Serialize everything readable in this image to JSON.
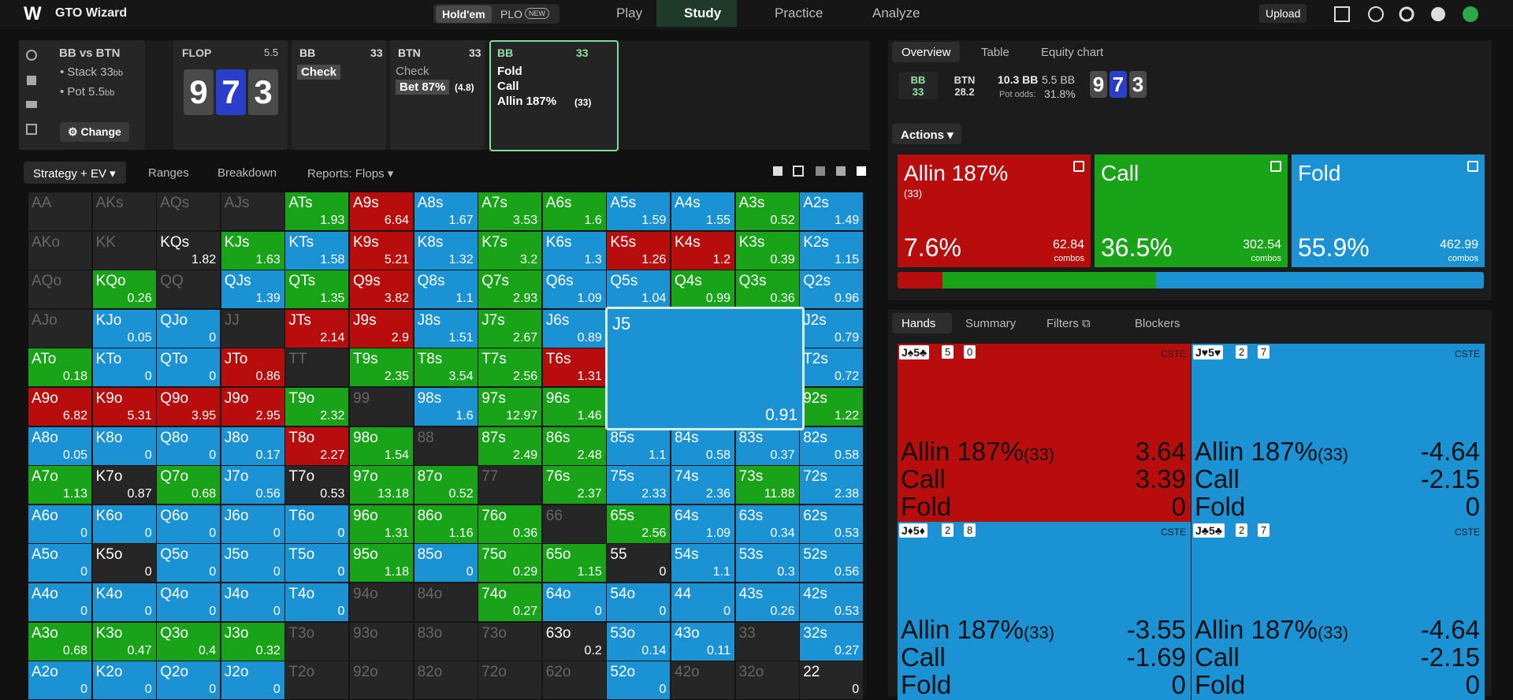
{
  "topbar": {
    "brand": "GTO Wizard",
    "game_tabs": [
      "Hold'em",
      "PLO"
    ],
    "new_badge": "NEW",
    "nav": [
      "Play",
      "Study",
      "Practice",
      "Analyze"
    ],
    "upload": "Upload"
  },
  "spot": {
    "title": "BB vs BTN",
    "stack": "Stack 33",
    "stack_unit": "bb",
    "pot": "Pot 5.5",
    "pot_unit": "bb",
    "change": "Change"
  },
  "flop": {
    "label": "FLOP",
    "pot": "5.5",
    "cards": [
      {
        "rank": "9",
        "color": "#4a4a4a"
      },
      {
        "rank": "7",
        "color": "#2a3fc9"
      },
      {
        "rank": "3",
        "color": "#4a4a4a"
      }
    ]
  },
  "nodes": [
    {
      "player": "BB",
      "stack": "33",
      "actions": [
        "Check"
      ]
    },
    {
      "player": "BTN",
      "stack": "33",
      "actions": [
        "Check",
        "Bet 87%"
      ],
      "note": "(4.8)"
    },
    {
      "player": "BB",
      "stack": "33",
      "actions": [
        "Fold",
        "Call",
        "Allin 187%"
      ],
      "note": "(33)"
    }
  ],
  "subtabs": [
    "Strategy + EV",
    "Ranges",
    "Breakdown",
    "Reports: Flops"
  ],
  "grid": {
    "rows": [
      [
        [
          "AA",
          null,
          "#262626"
        ],
        [
          "AKs",
          null,
          "#262626"
        ],
        [
          "AQs",
          null,
          "#262626"
        ],
        [
          "AJs",
          null,
          "#262626"
        ],
        [
          "ATs",
          1.93,
          "#19a319"
        ],
        [
          "A9s",
          6.64,
          "#b70d0d"
        ],
        [
          "A8s",
          1.67,
          "#1a92d3"
        ],
        [
          "A7s",
          3.53,
          "#19a319"
        ],
        [
          "A6s",
          1.6,
          "#19a319"
        ],
        [
          "A5s",
          1.59,
          "#1a92d3"
        ],
        [
          "A4s",
          1.55,
          "#1a92d3"
        ],
        [
          "A3s",
          0.52,
          "#19a319"
        ],
        [
          "A2s",
          1.49,
          "#1a92d3"
        ]
      ],
      [
        [
          "AKo",
          null,
          "#262626"
        ],
        [
          "KK",
          null,
          "#262626"
        ],
        [
          "KQs",
          1.82,
          "#262626"
        ],
        [
          "KJs",
          1.63,
          "#19a319"
        ],
        [
          "KTs",
          1.58,
          "#1a92d3"
        ],
        [
          "K9s",
          5.21,
          "#b70d0d"
        ],
        [
          "K8s",
          1.32,
          "#1a92d3"
        ],
        [
          "K7s",
          3.2,
          "#19a319"
        ],
        [
          "K6s",
          1.3,
          "#1a92d3"
        ],
        [
          "K5s",
          1.26,
          "#b70d0d"
        ],
        [
          "K4s",
          1.2,
          "#b70d0d"
        ],
        [
          "K3s",
          0.39,
          "#19a319"
        ],
        [
          "K2s",
          1.15,
          "#1a92d3"
        ]
      ],
      [
        [
          "AQo",
          null,
          "#262626"
        ],
        [
          "KQo",
          0.26,
          "#19a319"
        ],
        [
          "QQ",
          null,
          "#262626"
        ],
        [
          "QJs",
          1.39,
          "#1a92d3"
        ],
        [
          "QTs",
          1.35,
          "#19a319"
        ],
        [
          "Q9s",
          3.82,
          "#b70d0d"
        ],
        [
          "Q8s",
          1.1,
          "#1a92d3"
        ],
        [
          "Q7s",
          2.93,
          "#19a319"
        ],
        [
          "Q6s",
          1.09,
          "#1a92d3"
        ],
        [
          "Q5s",
          1.04,
          "#1a92d3"
        ],
        [
          "Q4s",
          0.99,
          "#19a319"
        ],
        [
          "Q3s",
          0.36,
          "#19a319"
        ],
        [
          "Q2s",
          0.96,
          "#1a92d3"
        ]
      ],
      [
        [
          "AJo",
          null,
          "#262626"
        ],
        [
          "KJo",
          0.05,
          "#1a92d3"
        ],
        [
          "QJo",
          0,
          "#1a92d3"
        ],
        [
          "JJ",
          null,
          "#262626"
        ],
        [
          "JTs",
          2.14,
          "#b70d0d"
        ],
        [
          "J9s",
          2.9,
          "#b70d0d"
        ],
        [
          "J8s",
          1.51,
          "#1a92d3"
        ],
        [
          "J7s",
          2.67,
          "#19a319"
        ],
        [
          "J6s",
          0.89,
          "#1a92d3"
        ],
        [
          null,
          null,
          "#262626"
        ],
        [
          null,
          null,
          "#262626"
        ],
        [
          null,
          null,
          "#262626"
        ],
        [
          "J2s",
          0.79,
          "#1a92d3"
        ]
      ],
      [
        [
          "ATo",
          0.18,
          "#19a319"
        ],
        [
          "KTo",
          0,
          "#1a92d3"
        ],
        [
          "QTo",
          0,
          "#1a92d3"
        ],
        [
          "JTo",
          0.86,
          "#b70d0d"
        ],
        [
          "TT",
          null,
          "#262626"
        ],
        [
          "T9s",
          2.35,
          "#19a319"
        ],
        [
          "T8s",
          3.54,
          "#19a319"
        ],
        [
          "T7s",
          2.56,
          "#19a319"
        ],
        [
          "T6s",
          1.31,
          "#b70d0d"
        ],
        [
          null,
          null,
          "#262626"
        ],
        [
          null,
          null,
          "#262626"
        ],
        [
          null,
          null,
          "#262626"
        ],
        [
          "T2s",
          0.72,
          "#1a92d3"
        ]
      ],
      [
        [
          "A9o",
          6.82,
          "#b70d0d"
        ],
        [
          "K9o",
          5.31,
          "#b70d0d"
        ],
        [
          "Q9o",
          3.95,
          "#b70d0d"
        ],
        [
          "J9o",
          2.95,
          "#b70d0d"
        ],
        [
          "T9o",
          2.32,
          "#19a319"
        ],
        [
          "99",
          null,
          "#262626"
        ],
        [
          "98s",
          1.6,
          "#1a92d3"
        ],
        [
          "97s",
          12.97,
          "#19a319"
        ],
        [
          "96s",
          1.46,
          "#19a319"
        ],
        [
          null,
          null,
          "#262626"
        ],
        [
          null,
          null,
          "#262626"
        ],
        [
          null,
          null,
          "#262626"
        ],
        [
          "92s",
          1.22,
          "#19a319"
        ]
      ],
      [
        [
          "A8o",
          0.05,
          "#1a92d3"
        ],
        [
          "K8o",
          0,
          "#1a92d3"
        ],
        [
          "Q8o",
          0,
          "#1a92d3"
        ],
        [
          "J8o",
          0.17,
          "#1a92d3"
        ],
        [
          "T8o",
          2.27,
          "#b70d0d"
        ],
        [
          "98o",
          1.54,
          "#19a319"
        ],
        [
          "88",
          null,
          "#262626"
        ],
        [
          "87s",
          2.49,
          "#19a319"
        ],
        [
          "86s",
          2.48,
          "#19a319"
        ],
        [
          "85s",
          1.1,
          "#1a92d3"
        ],
        [
          "84s",
          0.58,
          "#1a92d3"
        ],
        [
          "83s",
          0.37,
          "#1a92d3"
        ],
        [
          "82s",
          0.58,
          "#1a92d3"
        ]
      ],
      [
        [
          "A7o",
          1.13,
          "#19a319"
        ],
        [
          "K7o",
          0.87,
          "#262626"
        ],
        [
          "Q7o",
          0.68,
          "#19a319"
        ],
        [
          "J7o",
          0.56,
          "#1a92d3"
        ],
        [
          "T7o",
          0.53,
          "#262626"
        ],
        [
          "97o",
          13.18,
          "#19a319"
        ],
        [
          "87o",
          0.52,
          "#19a319"
        ],
        [
          "77",
          null,
          "#262626"
        ],
        [
          "76s",
          2.37,
          "#19a319"
        ],
        [
          "75s",
          2.33,
          "#1a92d3"
        ],
        [
          "74s",
          2.36,
          "#1a92d3"
        ],
        [
          "73s",
          11.88,
          "#19a319"
        ],
        [
          "72s",
          2.38,
          "#1a92d3"
        ]
      ],
      [
        [
          "A6o",
          0,
          "#1a92d3"
        ],
        [
          "K6o",
          0,
          "#1a92d3"
        ],
        [
          "Q6o",
          0,
          "#1a92d3"
        ],
        [
          "J6o",
          0,
          "#1a92d3"
        ],
        [
          "T6o",
          0,
          "#1a92d3"
        ],
        [
          "96o",
          1.31,
          "#19a319"
        ],
        [
          "86o",
          1.16,
          "#19a319"
        ],
        [
          "76o",
          0.36,
          "#19a319"
        ],
        [
          "66",
          null,
          "#262626"
        ],
        [
          "65s",
          2.56,
          "#19a319"
        ],
        [
          "64s",
          1.09,
          "#1a92d3"
        ],
        [
          "63s",
          0.34,
          "#1a92d3"
        ],
        [
          "62s",
          0.53,
          "#1a92d3"
        ]
      ],
      [
        [
          "A5o",
          0,
          "#1a92d3"
        ],
        [
          "K5o",
          0,
          "#262626"
        ],
        [
          "Q5o",
          0,
          "#1a92d3"
        ],
        [
          "J5o",
          0,
          "#1a92d3"
        ],
        [
          "T5o",
          0,
          "#1a92d3"
        ],
        [
          "95o",
          1.18,
          "#19a319"
        ],
        [
          "85o",
          0,
          "#1a92d3"
        ],
        [
          "75o",
          0.29,
          "#19a319"
        ],
        [
          "65o",
          1.15,
          "#19a319"
        ],
        [
          "55",
          0,
          "#262626"
        ],
        [
          "54s",
          1.1,
          "#1a92d3"
        ],
        [
          "53s",
          0.3,
          "#1a92d3"
        ],
        [
          "52s",
          0.56,
          "#1a92d3"
        ]
      ],
      [
        [
          "A4o",
          0,
          "#1a92d3"
        ],
        [
          "K4o",
          0,
          "#1a92d3"
        ],
        [
          "Q4o",
          0,
          "#1a92d3"
        ],
        [
          "J4o",
          0,
          "#1a92d3"
        ],
        [
          "T4o",
          0,
          "#1a92d3"
        ],
        [
          "94o",
          null,
          "#262626"
        ],
        [
          "84o",
          null,
          "#262626"
        ],
        [
          "74o",
          0.27,
          "#19a319"
        ],
        [
          "64o",
          0,
          "#1a92d3"
        ],
        [
          "54o",
          0,
          "#1a92d3"
        ],
        [
          "44",
          0,
          "#1a92d3"
        ],
        [
          "43s",
          0.26,
          "#1a92d3"
        ],
        [
          "42s",
          0.53,
          "#1a92d3"
        ]
      ],
      [
        [
          "A3o",
          0.68,
          "#19a319"
        ],
        [
          "K3o",
          0.47,
          "#19a319"
        ],
        [
          "Q3o",
          0.4,
          "#19a319"
        ],
        [
          "J3o",
          0.32,
          "#19a319"
        ],
        [
          "T3o",
          null,
          "#262626"
        ],
        [
          "93o",
          null,
          "#262626"
        ],
        [
          "83o",
          null,
          "#262626"
        ],
        [
          "73o",
          null,
          "#262626"
        ],
        [
          "63o",
          0.2,
          "#262626"
        ],
        [
          "53o",
          0.14,
          "#1a92d3"
        ],
        [
          "43o",
          0.11,
          "#1a92d3"
        ],
        [
          "33",
          null,
          "#262626"
        ],
        [
          "32s",
          0.27,
          "#1a92d3"
        ]
      ],
      [
        [
          "A2o",
          0,
          "#1a92d3"
        ],
        [
          "K2o",
          0,
          "#1a92d3"
        ],
        [
          "Q2o",
          0,
          "#1a92d3"
        ],
        [
          "J2o",
          0,
          "#1a92d3"
        ],
        [
          "T2o",
          null,
          "#262626"
        ],
        [
          "92o",
          null,
          "#262626"
        ],
        [
          "82o",
          null,
          "#262626"
        ],
        [
          "72o",
          null,
          "#262626"
        ],
        [
          "62o",
          null,
          "#262626"
        ],
        [
          "52o",
          0,
          "#1a92d3"
        ],
        [
          "42o",
          null,
          "#262626"
        ],
        [
          "32o",
          null,
          "#262626"
        ],
        [
          "22",
          0,
          "#262626"
        ]
      ]
    ],
    "popup": {
      "hand": "J5",
      "ev": 0.91,
      "color": "#1a92d3"
    }
  },
  "overview": {
    "tabs": [
      "Overview",
      "Table",
      "Equity chart"
    ],
    "bb": "BB",
    "bb_stack": "33",
    "btn": "BTN",
    "btn_stack": "28.2",
    "stack_bb": "10.3 BB",
    "pot_bb": "5.5 BB",
    "pot_odds_label": "Pot odds:",
    "pot_odds": "31.8%"
  },
  "actions": {
    "button": "Actions",
    "items": [
      {
        "name": "Allin 187%",
        "note": "(33)",
        "freq": 7.6,
        "freq_label": "7.6%",
        "combos": "62.84",
        "unit": "combos",
        "color": "#b70d0d"
      },
      {
        "name": "Call",
        "freq": 36.5,
        "freq_label": "36.5%",
        "combos": "302.54",
        "unit": "combos",
        "color": "#19a319"
      },
      {
        "name": "Fold",
        "freq": 55.9,
        "freq_label": "55.9%",
        "combos": "462.99",
        "unit": "combos",
        "color": "#1a92d3"
      }
    ]
  },
  "hands": {
    "tabs": [
      "Hands",
      "Summary",
      "Filters",
      "Blockers"
    ],
    "cards": [
      {
        "combo": "J♠5♣",
        "badges": [
          "5",
          "0"
        ],
        "tag": "CSTE",
        "color": "#b70d0d",
        "rows": [
          [
            "Allin 187%",
            "(33)",
            3.64
          ],
          [
            "Call",
            null,
            3.39
          ],
          [
            "Fold",
            null,
            0
          ]
        ]
      },
      {
        "combo": "J♥5♥",
        "badges": [
          "2",
          "7"
        ],
        "tag": "CSTE",
        "color": "#1a92d3",
        "rows": [
          [
            "Allin 187%",
            "(33)",
            -4.64
          ],
          [
            "Call",
            null,
            -2.15
          ],
          [
            "Fold",
            null,
            0
          ]
        ]
      },
      {
        "combo": "J♦5♦",
        "badges": [
          "2",
          "8"
        ],
        "tag": "CSTE",
        "color": "#1a92d3",
        "rows": [
          [
            "Allin 187%",
            "(33)",
            -3.55
          ],
          [
            "Call",
            null,
            -1.69
          ],
          [
            "Fold",
            null,
            0
          ]
        ]
      },
      {
        "combo": "J♣5♣",
        "badges": [
          "2",
          "7"
        ],
        "tag": "CSTE",
        "color": "#1a92d3",
        "rows": [
          [
            "Allin 187%",
            "(33)",
            -4.64
          ],
          [
            "Call",
            null,
            -2.15
          ],
          [
            "Fold",
            null,
            0
          ]
        ]
      }
    ]
  }
}
